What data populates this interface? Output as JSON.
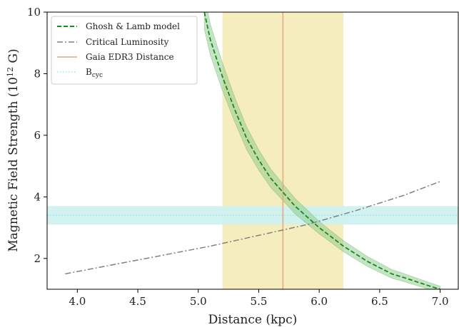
{
  "chart_data": {
    "type": "line",
    "xlabel": "Distance (kpc)",
    "ylabel": "Magnetic Field Strength (10",
    "ylabel_sup": "12",
    "ylabel_end": " G)",
    "xlim": [
      3.75,
      7.15
    ],
    "ylim": [
      1.0,
      10.0
    ],
    "x_ticks": [
      4.0,
      4.5,
      5.0,
      5.5,
      6.0,
      6.5,
      7.0
    ],
    "x_tick_labels": [
      "4.0",
      "4.5",
      "5.0",
      "5.5",
      "6.0",
      "6.5",
      "7.0"
    ],
    "y_ticks": [
      2,
      4,
      6,
      8,
      10
    ],
    "y_tick_labels": [
      "2",
      "4",
      "6",
      "8",
      "10"
    ],
    "grid": false,
    "legend_position": "top-left",
    "series": [
      {
        "name": "Ghosh & Lamb model",
        "style": "dashed",
        "color": "#1a8a1a",
        "band_color": "#7fc47f",
        "x": [
          5.05,
          5.1,
          5.2,
          5.3,
          5.4,
          5.5,
          5.6,
          5.7,
          5.8,
          5.9,
          6.0,
          6.1,
          6.2,
          6.3,
          6.4,
          6.5,
          6.6,
          6.7,
          6.8,
          6.9,
          7.0
        ],
        "values": [
          10.0,
          9.1,
          7.9,
          6.85,
          5.9,
          5.2,
          4.6,
          4.15,
          3.7,
          3.35,
          3.0,
          2.7,
          2.4,
          2.15,
          1.9,
          1.7,
          1.5,
          1.38,
          1.25,
          1.12,
          1.0
        ],
        "band_halfwidth": [
          0.55,
          0.5,
          0.45,
          0.4,
          0.37,
          0.33,
          0.3,
          0.27,
          0.25,
          0.23,
          0.2,
          0.19,
          0.18,
          0.17,
          0.16,
          0.15,
          0.14,
          0.13,
          0.12,
          0.11,
          0.1
        ]
      },
      {
        "name": "Critical Luminosity",
        "style": "dashdot",
        "color": "#808080",
        "x": [
          3.9,
          4.3,
          4.7,
          5.1,
          5.5,
          5.9,
          6.3,
          6.7,
          7.0
        ],
        "values": [
          1.5,
          1.8,
          2.1,
          2.4,
          2.75,
          3.1,
          3.55,
          4.05,
          4.5
        ]
      },
      {
        "name": "Gaia EDR3 Distance",
        "style": "vertical-line",
        "color": "#e3a87a",
        "x": 5.7,
        "span": [
          5.2,
          6.2
        ],
        "span_color": "#f6edbf"
      },
      {
        "name": "B",
        "name_sub": "cyc",
        "style": "dotted-horizontal",
        "color": "#8ee3e3",
        "y": 3.4,
        "band": [
          3.1,
          3.7
        ],
        "band_color": "#cdf1f1"
      }
    ]
  }
}
